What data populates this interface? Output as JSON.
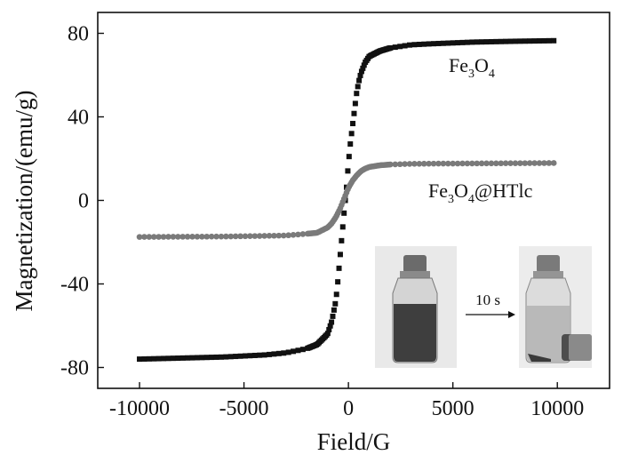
{
  "chart_data": {
    "type": "scatter",
    "xlabel": "Field/G",
    "ylabel": "Magnetization/(emu/g)",
    "xlim": [
      -12000,
      12500
    ],
    "ylim": [
      -90,
      90
    ],
    "xticks": [
      -10000,
      -5000,
      0,
      5000,
      10000
    ],
    "yticks": [
      -80,
      -40,
      0,
      40,
      80
    ],
    "x_tick_labels": [
      "-10000",
      "-5000",
      "0",
      "5000",
      "10000"
    ],
    "y_tick_labels": [
      "-80",
      "-40",
      "0",
      "40",
      "80"
    ],
    "grid": false,
    "series": [
      {
        "name": "Fe3O4",
        "label_main": "Fe",
        "label_sub1": "3",
        "label_mid": "O",
        "label_sub2": "4",
        "label_tail": "",
        "marker": "square",
        "color": "#111111",
        "x": [
          -10000,
          -8000,
          -6000,
          -4000,
          -3000,
          -2000,
          -1500,
          -1000,
          -800,
          -600,
          -500,
          -400,
          -300,
          -200,
          -100,
          0,
          100,
          200,
          300,
          400,
          500,
          600,
          800,
          1000,
          1500,
          2000,
          3000,
          4000,
          6000,
          8000,
          10000
        ],
        "y": [
          -76,
          -75.5,
          -75,
          -74,
          -73,
          -71,
          -69,
          -64,
          -58,
          -48,
          -38,
          -27,
          -16,
          -5,
          5,
          18,
          28,
          36,
          44,
          52,
          57,
          61,
          66,
          69,
          71.5,
          73,
          74.5,
          75,
          75.8,
          76.2,
          76.5
        ]
      },
      {
        "name": "Fe3O4@HTlc",
        "label_main": "Fe",
        "label_sub1": "3",
        "label_mid": "O",
        "label_sub2": "4",
        "label_tail": "@HTlc",
        "marker": "circle",
        "color": "#7a7a7a",
        "x": [
          -10000,
          -8000,
          -6000,
          -4000,
          -3000,
          -2000,
          -1500,
          -1000,
          -800,
          -600,
          -400,
          -200,
          0,
          200,
          400,
          600,
          800,
          1000,
          1500,
          2000,
          3000,
          4000,
          6000,
          8000,
          10000
        ],
        "y": [
          -17.5,
          -17.4,
          -17.3,
          -17,
          -16.8,
          -16,
          -15.5,
          -13,
          -11,
          -8,
          -4,
          1,
          6,
          9.5,
          12,
          14,
          15.2,
          16,
          16.8,
          17.2,
          17.5,
          17.6,
          17.7,
          17.8,
          17.9
        ]
      }
    ],
    "inset": {
      "arrow_label": "10 s"
    }
  }
}
